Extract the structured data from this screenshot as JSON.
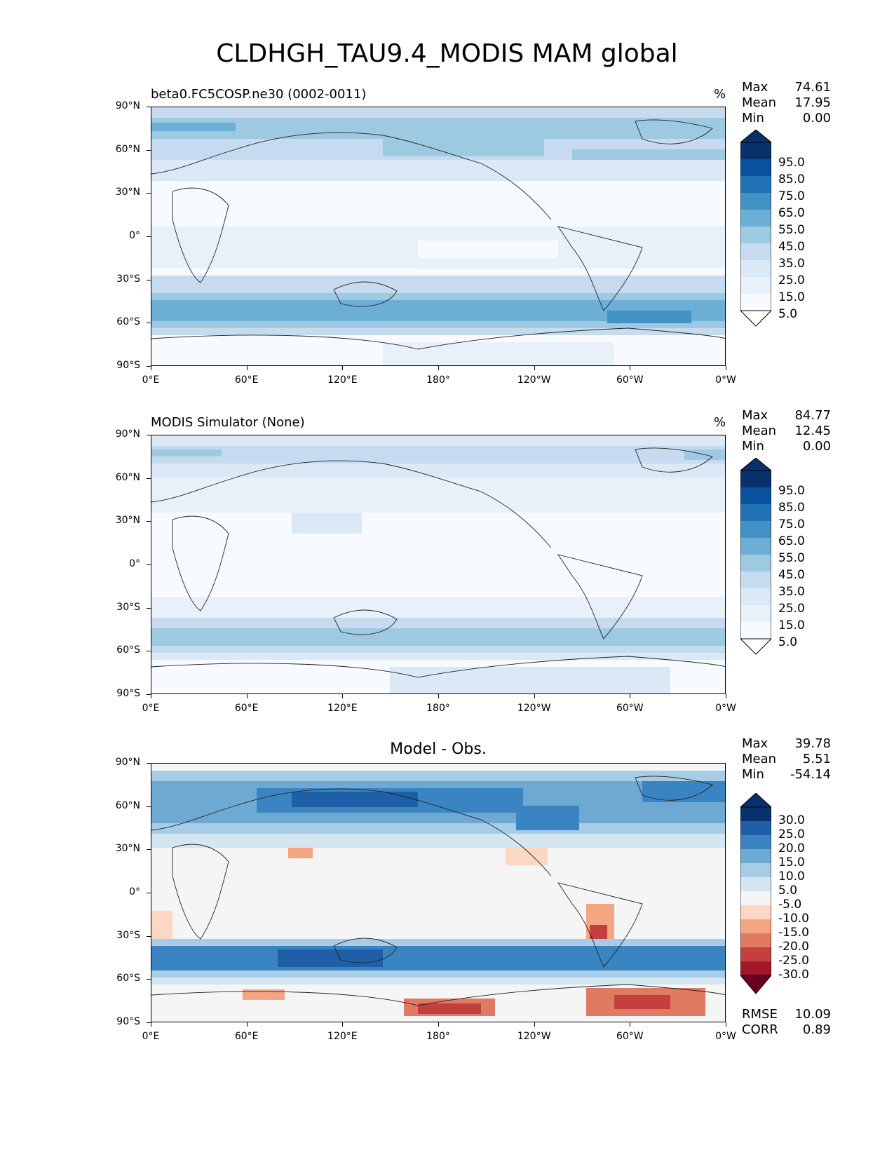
{
  "title": "CLDHGH_TAU9.4_MODIS MAM global",
  "lat_ticks": [
    "90°N",
    "60°N",
    "30°N",
    "0°",
    "30°S",
    "60°S",
    "90°S"
  ],
  "lon_ticks": [
    "0°E",
    "60°E",
    "120°E",
    "180°",
    "120°W",
    "60°W",
    "0°W"
  ],
  "panels": [
    {
      "title": "beta0.FC5COSP.ne30 (0002-0011)",
      "units": "%",
      "stats": [
        {
          "label": "Max",
          "value": "74.61"
        },
        {
          "label": "Mean",
          "value": "17.95"
        },
        {
          "label": "Min",
          "value": "0.00"
        }
      ],
      "colorbar": {
        "labels": [
          "95.0",
          "85.0",
          "75.0",
          "65.0",
          "55.0",
          "45.0",
          "35.0",
          "25.0",
          "15.0",
          "5.0"
        ],
        "colors": [
          "#08306b",
          "#08519c",
          "#2171b5",
          "#4292c6",
          "#6baed6",
          "#9ecae1",
          "#c6dbef",
          "#dbe9f6",
          "#e8f1fa",
          "#f7fbff"
        ]
      }
    },
    {
      "title": "MODIS Simulator (None)",
      "units": "%",
      "stats": [
        {
          "label": "Max",
          "value": "84.77"
        },
        {
          "label": "Mean",
          "value": "12.45"
        },
        {
          "label": "Min",
          "value": "0.00"
        }
      ],
      "colorbar": {
        "labels": [
          "95.0",
          "85.0",
          "75.0",
          "65.0",
          "55.0",
          "45.0",
          "35.0",
          "25.0",
          "15.0",
          "5.0"
        ],
        "colors": [
          "#08306b",
          "#08519c",
          "#2171b5",
          "#4292c6",
          "#6baed6",
          "#9ecae1",
          "#c6dbef",
          "#dbe9f6",
          "#e8f1fa",
          "#f7fbff"
        ]
      }
    },
    {
      "title": "Model - Obs.",
      "units": "",
      "stats": [
        {
          "label": "Max",
          "value": "39.78"
        },
        {
          "label": "Mean",
          "value": "5.51"
        },
        {
          "label": "Min",
          "value": "-54.14"
        }
      ],
      "colorbar": {
        "labels": [
          "30.0",
          "25.0",
          "20.0",
          "15.0",
          "10.0",
          "5.0",
          "-5.0",
          "-10.0",
          "-15.0",
          "-20.0",
          "-25.0",
          "-30.0"
        ],
        "colors": [
          "#08306b",
          "#1f5fa8",
          "#3b84c2",
          "#6ea9d4",
          "#a6cde5",
          "#d4e6f1",
          "#f5f5f5",
          "#fbd7c4",
          "#f4a582",
          "#e07a63",
          "#c4403f",
          "#a3162a",
          "#67001f"
        ]
      },
      "rmse": {
        "label": "RMSE",
        "value": "10.09"
      },
      "corr": {
        "label": "CORR",
        "value": "0.89"
      }
    }
  ]
}
